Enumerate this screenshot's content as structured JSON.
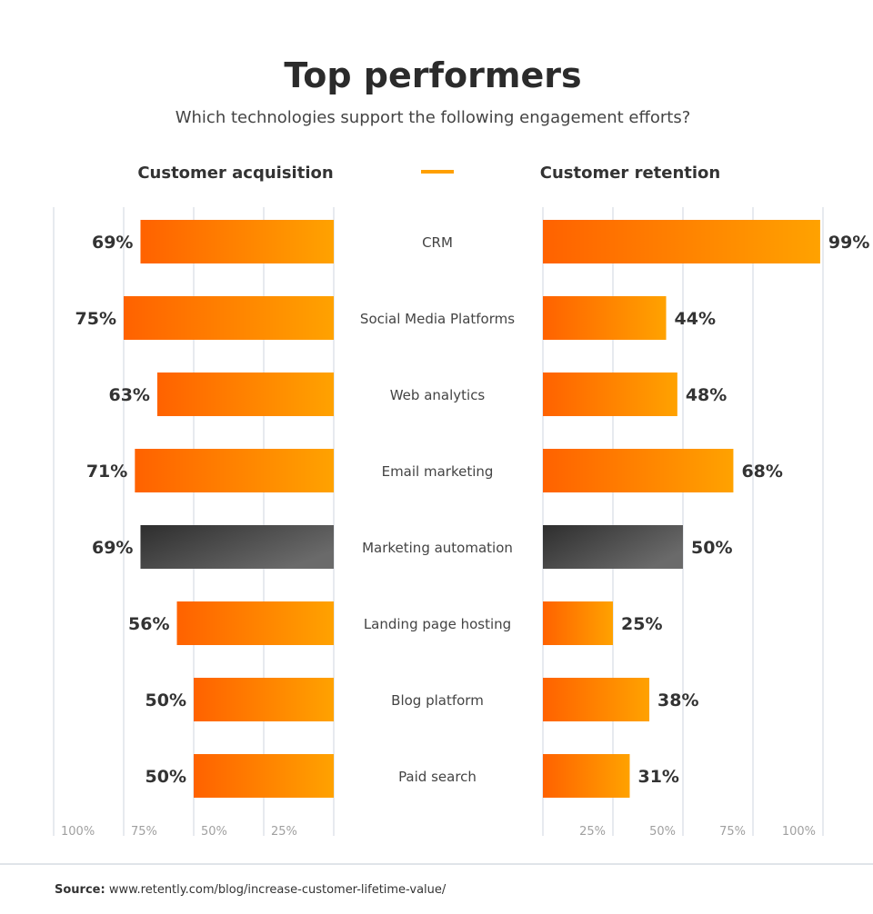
{
  "chart_data": {
    "type": "bar",
    "orientation": "horizontal-butterfly",
    "title": "Top performers",
    "subtitle": "Which technologies support the following engagement efforts?",
    "categories": [
      "CRM",
      "Social Media Platforms",
      "Web analytics",
      "Email marketing",
      "Marketing automation",
      "Landing page hosting",
      "Blog platform",
      "Paid search"
    ],
    "series": [
      {
        "name": "Customer acquisition",
        "values": [
          69,
          75,
          63,
          71,
          69,
          56,
          50,
          50
        ],
        "direction": "left"
      },
      {
        "name": "Customer retention",
        "values": [
          99,
          44,
          48,
          68,
          50,
          25,
          38,
          31
        ],
        "direction": "right"
      }
    ],
    "value_labels_left": [
      "69%",
      "75%",
      "63%",
      "71%",
      "69%",
      "56%",
      "50%",
      "50%"
    ],
    "value_labels_right": [
      "99%",
      "44%",
      "48%",
      "68%",
      "50%",
      "25%",
      "38%",
      "31%"
    ],
    "highlighted_category": "Marketing automation",
    "xlim": [
      0,
      100
    ],
    "left_ticks": [
      "100%",
      "75%",
      "50%",
      "25%"
    ],
    "right_ticks": [
      "25%",
      "50%",
      "75%",
      "100%"
    ],
    "grid": true,
    "colors": {
      "bar_start": "#ff6200",
      "bar_end": "#ffa200",
      "highlight_start": "#2e2e2e",
      "highlight_end": "#6a6a6a",
      "legend_line": "#ffa000",
      "grid": "#cfd6df",
      "text": "#333333",
      "tick": "#a0a0a0"
    }
  },
  "source": {
    "label": "Source:",
    "url": "www.retently.com/blog/increase-customer-lifetime-value/"
  }
}
